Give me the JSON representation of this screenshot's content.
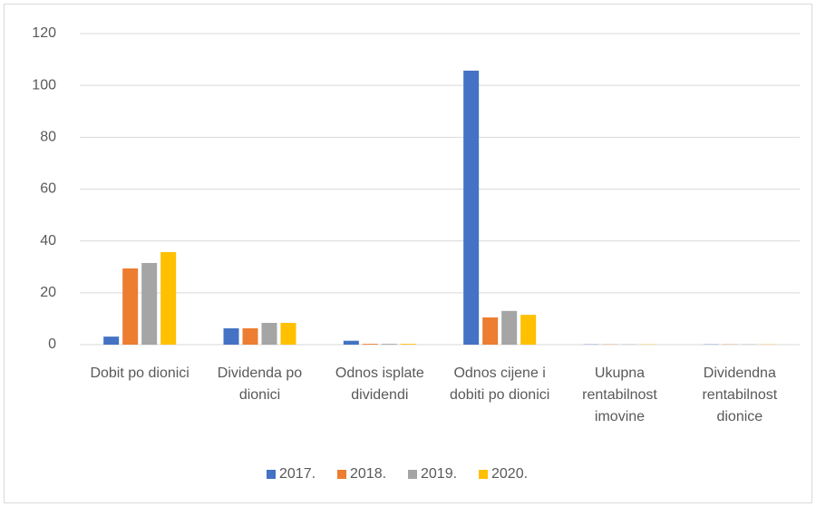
{
  "chart_data": {
    "type": "bar",
    "categories": [
      "Dobit po dionici",
      "Dividenda po dionici",
      "Odnos isplate dividendi",
      "Odnos cijene i dobiti po dionici",
      "Ukupna rentabilnost imovine",
      "Dividendna rentabilnost dionice"
    ],
    "series": [
      {
        "name": "2017.",
        "color": "#4472c4",
        "values": [
          3.1,
          6.3,
          1.5,
          105.7,
          0.1,
          0.1
        ]
      },
      {
        "name": "2018.",
        "color": "#ed7d31",
        "values": [
          29.4,
          6.3,
          0.3,
          10.5,
          0.1,
          0.1
        ]
      },
      {
        "name": "2019.",
        "color": "#a5a5a5",
        "values": [
          31.5,
          8.4,
          0.3,
          13,
          0.1,
          0.1
        ]
      },
      {
        "name": "2020.",
        "color": "#ffc000",
        "values": [
          35.7,
          8.4,
          0.3,
          11.5,
          0.1,
          0.1
        ]
      }
    ],
    "ylim": [
      0,
      120
    ],
    "yticks": [
      0,
      20,
      40,
      60,
      80,
      100,
      120
    ],
    "grid": true,
    "legend": "bottom"
  }
}
